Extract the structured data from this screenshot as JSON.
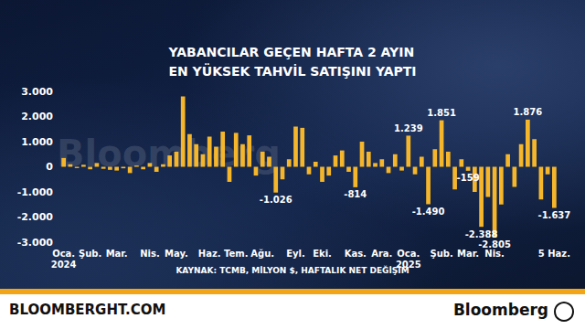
{
  "chart_data": {
    "type": "bar",
    "title": "YABANCILAR GEÇEN HAFTA 2 AYIN\nEN YÜKSEK TAHVİL SATIŞINI YAPTI",
    "source": "KAYNAK: TCMB, MİLYON $, HAFTALIK NET DEĞİŞİM",
    "watermark": "Bloomberg",
    "categories": [
      "Oca.\n2024",
      null,
      null,
      null,
      "Şub.",
      null,
      null,
      null,
      "Mar.",
      null,
      null,
      null,
      null,
      "Nis.",
      null,
      null,
      null,
      "May.",
      null,
      null,
      null,
      null,
      "Haz.",
      null,
      null,
      null,
      "Tem.",
      null,
      null,
      null,
      "Ağu.",
      null,
      null,
      null,
      null,
      "Eyl.",
      null,
      null,
      null,
      "Eki.",
      null,
      null,
      null,
      null,
      "Kas.",
      null,
      null,
      null,
      "Ara.",
      null,
      null,
      null,
      "Oca.\n2025",
      null,
      null,
      null,
      null,
      "Şub.",
      null,
      null,
      null,
      "Mar.",
      null,
      null,
      null,
      "Nis.",
      null,
      null,
      null,
      null,
      null,
      null,
      null,
      null,
      "5 Haz."
    ],
    "values": [
      350,
      100,
      -50,
      80,
      -100,
      150,
      -80,
      -120,
      -150,
      -60,
      -250,
      50,
      -100,
      150,
      -200,
      100,
      450,
      600,
      2800,
      1300,
      900,
      500,
      1200,
      800,
      1400,
      -600,
      1350,
      900,
      1250,
      -350,
      600,
      400,
      -1026,
      -500,
      300,
      1600,
      1550,
      -300,
      200,
      -600,
      -350,
      450,
      650,
      -200,
      -814,
      1000,
      600,
      150,
      300,
      -250,
      500,
      -150,
      1239,
      -300,
      400,
      -1490,
      700,
      1851,
      600,
      -900,
      300,
      -159,
      -1000,
      -2388,
      -1200,
      -2805,
      -1500,
      500,
      -800,
      900,
      1876,
      1100,
      -1300,
      -300,
      -1637
    ],
    "value_labels": [
      null,
      null,
      null,
      null,
      null,
      null,
      null,
      null,
      null,
      null,
      null,
      null,
      null,
      null,
      null,
      null,
      null,
      null,
      null,
      null,
      null,
      null,
      null,
      null,
      null,
      null,
      null,
      null,
      null,
      null,
      null,
      null,
      "-1.026",
      null,
      null,
      null,
      null,
      null,
      null,
      null,
      null,
      null,
      null,
      null,
      "-814",
      null,
      null,
      null,
      null,
      null,
      null,
      null,
      "1.239",
      null,
      null,
      "-1.490",
      null,
      "1.851",
      null,
      null,
      null,
      "-159",
      null,
      "-2.388",
      null,
      "-2.805",
      null,
      null,
      null,
      null,
      "1.876",
      null,
      null,
      null,
      "-1.637"
    ],
    "color": "#f5b62b",
    "ylim": [
      -3000,
      3000
    ],
    "yticks": [
      {
        "value": -3000,
        "label": "-3.000"
      },
      {
        "value": -2000,
        "label": "-2.000"
      },
      {
        "value": -1000,
        "label": "-1.000"
      },
      0,
      {
        "value": 1000,
        "label": "1.000"
      },
      {
        "value": 2000,
        "label": "2.000"
      },
      {
        "value": 3000,
        "label": "3.000"
      }
    ],
    "grid": false
  },
  "footer": {
    "site": "BLOOMBERGHT.COM",
    "brand": "Bloomberg"
  }
}
